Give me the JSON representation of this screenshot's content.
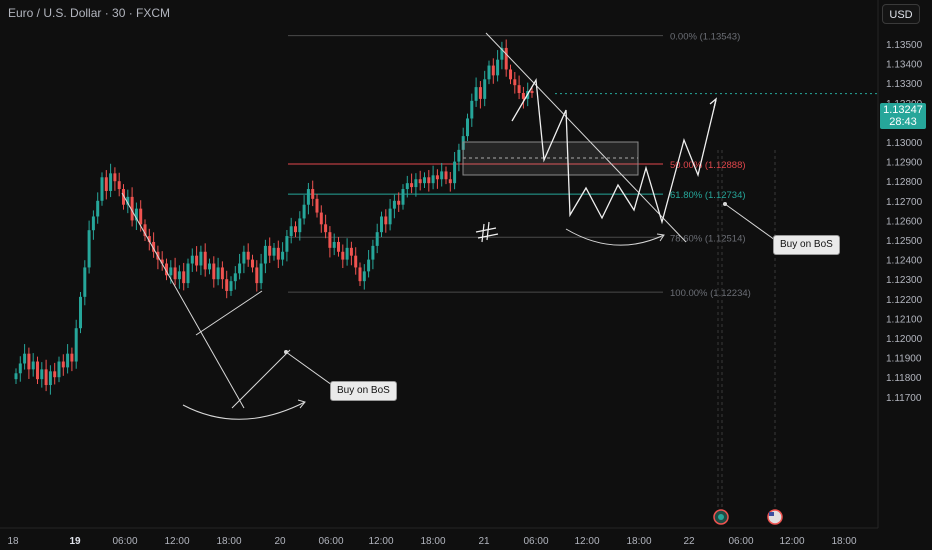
{
  "header": {
    "symbol_title": "Euro / U.S. Dollar · 30 · FXCM"
  },
  "currency_button": "USD",
  "current_price": {
    "value": "1.13247",
    "countdown": "28:43"
  },
  "annotations": {
    "left_callout": "Buy on BoS",
    "right_callout": "Buy on BoS"
  },
  "fib_levels": [
    {
      "label": "0.00% (1.13543)",
      "price": 1.13543,
      "color": "#4a4a4a",
      "text_color": "#6b6e75"
    },
    {
      "label": "50.00% (1.12888)",
      "price": 1.12888,
      "color": "#e0474c",
      "text_color": "#e0474c"
    },
    {
      "label": "61.80% (1.12734)",
      "price": 1.12734,
      "color": "#26a69a",
      "text_color": "#26a69a"
    },
    {
      "label": "78.60% (1.12514)",
      "price": 1.12514,
      "color": "#4a4a4a",
      "text_color": "#6b6e75"
    },
    {
      "label": "100.00% (1.12234)",
      "price": 1.12234,
      "color": "#4a4a4a",
      "text_color": "#6b6e75"
    }
  ],
  "chart_data": {
    "type": "candlestick",
    "y_ticks": [
      "1.13500",
      "1.13400",
      "1.13300",
      "1.13200",
      "1.13100",
      "1.13000",
      "1.12900",
      "1.12800",
      "1.12700",
      "1.12600",
      "1.12500",
      "1.12400",
      "1.12300",
      "1.12200",
      "1.12100",
      "1.12000",
      "1.11900",
      "1.11800",
      "1.11700"
    ],
    "x_ticks": [
      "18",
      "19",
      "06:00",
      "12:00",
      "18:00",
      "20",
      "06:00",
      "12:00",
      "18:00",
      "21",
      "06:00",
      "12:00",
      "18:00",
      "22",
      "06:00",
      "12:00",
      "18:00"
    ],
    "ylim": [
      1.1167,
      1.1357
    ],
    "colors": {
      "up": "#26a69a",
      "down": "#ef5350"
    },
    "candles_approx_close": [
      1.1182,
      1.1187,
      1.1192,
      1.1184,
      1.1188,
      1.1179,
      1.1184,
      1.1176,
      1.1183,
      1.118,
      1.1188,
      1.1185,
      1.1192,
      1.1188,
      1.1205,
      1.1221,
      1.1236,
      1.1255,
      1.1262,
      1.127,
      1.1282,
      1.1275,
      1.1284,
      1.128,
      1.1276,
      1.1268,
      1.1272,
      1.126,
      1.1266,
      1.1258,
      1.1252,
      1.1249,
      1.1244,
      1.124,
      1.1238,
      1.1232,
      1.1236,
      1.123,
      1.1234,
      1.1228,
      1.1238,
      1.1242,
      1.1237,
      1.1244,
      1.1235,
      1.1238,
      1.123,
      1.1236,
      1.123,
      1.1224,
      1.1229,
      1.1233,
      1.1238,
      1.1244,
      1.124,
      1.1236,
      1.1228,
      1.1238,
      1.1247,
      1.1242,
      1.1246,
      1.124,
      1.1244,
      1.1252,
      1.1257,
      1.1254,
      1.1261,
      1.1268,
      1.1276,
      1.1271,
      1.1264,
      1.1258,
      1.1254,
      1.1246,
      1.1249,
      1.1244,
      1.124,
      1.1246,
      1.1242,
      1.1236,
      1.1229,
      1.1234,
      1.124,
      1.1247,
      1.1254,
      1.1262,
      1.1258,
      1.1266,
      1.127,
      1.1268,
      1.1276,
      1.1279,
      1.1277,
      1.1281,
      1.1279,
      1.1282,
      1.1279,
      1.1283,
      1.1281,
      1.1285,
      1.1281,
      1.1279,
      1.129,
      1.1296,
      1.1303,
      1.1312,
      1.1321,
      1.1328,
      1.1322,
      1.1332,
      1.1339,
      1.1334,
      1.1342,
      1.1348,
      1.1337,
      1.1332,
      1.1329,
      1.1325,
      1.1322,
      1.1326,
      1.1325
    ]
  }
}
